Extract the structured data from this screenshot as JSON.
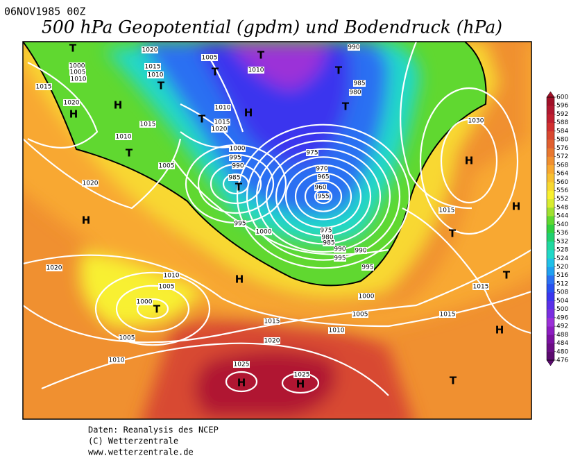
{
  "header": {
    "date": "06NOV1985 00Z",
    "title": "500 hPa Geopotential (gpdm) und Bodendruck (hPa)"
  },
  "footer": [
    "Daten: Reanalysis des NCEP",
    "(C) Wetterzentrale",
    "www.wetterzentrale.de"
  ],
  "colorbar": {
    "ticks": [
      476,
      480,
      484,
      488,
      492,
      496,
      500,
      504,
      508,
      512,
      516,
      520,
      524,
      528,
      532,
      536,
      540,
      544,
      548,
      552,
      556,
      560,
      564,
      568,
      572,
      576,
      580,
      584,
      588,
      592,
      596,
      600
    ],
    "colors": [
      "#5a0a6e",
      "#6a0d84",
      "#7a10a0",
      "#8c1cc0",
      "#9b30d8",
      "#7a2ee0",
      "#5a30e8",
      "#3a36ee",
      "#2850f0",
      "#2a70f2",
      "#20a0f0",
      "#20c0e8",
      "#20d8c8",
      "#20d8a0",
      "#20d070",
      "#30d040",
      "#60d830",
      "#a0e030",
      "#d8ec30",
      "#f8f030",
      "#f8d830",
      "#f8c030",
      "#f8a830",
      "#f09030",
      "#e87830",
      "#e06030",
      "#d84830",
      "#d03030",
      "#c02030",
      "#b01830",
      "#a01028"
    ]
  },
  "isobar_labels": [
    "1020",
    "1000",
    "1005",
    "1010",
    "1015",
    "1015",
    "1010",
    "1005",
    "1010",
    "990",
    "985",
    "980",
    "1010",
    "1015",
    "1020",
    "1015",
    "1010",
    "1005",
    "1000",
    "995",
    "990",
    "985",
    "975",
    "970",
    "965",
    "960",
    "955",
    "975",
    "980",
    "985",
    "990",
    "995",
    "990",
    "995",
    "995",
    "1000",
    "1020",
    "1020",
    "1020",
    "1010",
    "1005",
    "1000",
    "1005",
    "1010",
    "1015",
    "1020",
    "1010",
    "1005",
    "1000",
    "1015",
    "1015",
    "1015",
    "1030",
    "1025",
    "1025"
  ],
  "centers": [
    "T",
    "T",
    "T",
    "T",
    "T",
    "H",
    "H",
    "T",
    "T",
    "H",
    "T",
    "T",
    "H",
    "H",
    "H",
    "T",
    "H",
    "T",
    "T",
    "H",
    "H",
    "H",
    "T"
  ]
}
